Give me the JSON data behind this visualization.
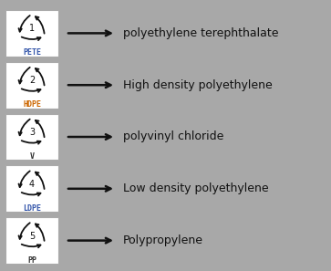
{
  "background_color": "#a8a8a8",
  "box_color": "#ffffff",
  "box_edge_color": "#aaaaaa",
  "rows": [
    {
      "number": "1",
      "label": "PETE",
      "label_color": "#3355aa",
      "text": "polyethylene terephthalate"
    },
    {
      "number": "2",
      "label": "HDPE",
      "label_color": "#cc6600",
      "text": "High density polyethylene"
    },
    {
      "number": "3",
      "label": "V",
      "label_color": "#333333",
      "text": "polyvinyl chloride"
    },
    {
      "number": "4",
      "label": "LDPE",
      "label_color": "#3355aa",
      "text": "Low density polyethylene"
    },
    {
      "number": "5",
      "label": "PP",
      "label_color": "#333333",
      "text": "Polypropylene"
    }
  ],
  "arrow_color": "#111111",
  "text_color": "#111111",
  "text_fontsize": 9,
  "label_fontsize": 6,
  "number_fontsize": 7,
  "fig_width": 3.63,
  "fig_height": 2.97,
  "dpi": 100
}
